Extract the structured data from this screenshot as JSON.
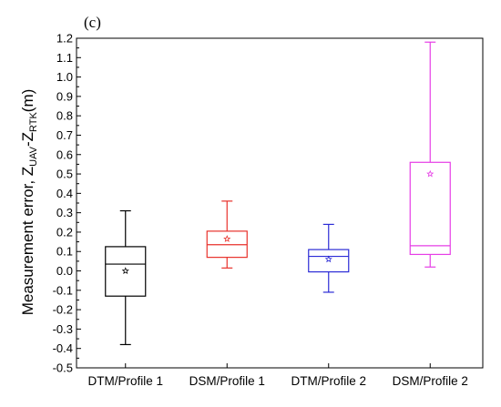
{
  "chart_data": {
    "type": "box",
    "panel_label": "(c)",
    "ylabel": {
      "prefix": "Measurement error, Z",
      "sub1": "UAV",
      "mid": "-Z",
      "sub2": "RTK",
      "suffix": "(m)"
    },
    "ylim": [
      -0.5,
      1.2
    ],
    "yticks": [
      "-0.5",
      "-0.4",
      "-0.3",
      "-0.2",
      "-0.1",
      "0.0",
      "0.1",
      "0.2",
      "0.3",
      "0.4",
      "0.5",
      "0.6",
      "0.7",
      "0.8",
      "0.9",
      "1.0",
      "1.1",
      "1.2"
    ],
    "grid": false,
    "legend": "none",
    "categories": [
      "DTM/Profile 1",
      "DSM/Profile 1",
      "DTM/Profile 2",
      "DSM/Profile 2"
    ],
    "series": [
      {
        "category": "DTM/Profile 1",
        "color": "#000000",
        "whisker_low": -0.38,
        "q1": -0.13,
        "median": 0.035,
        "q3": 0.125,
        "whisker_high": 0.31,
        "mean": 0.0
      },
      {
        "category": "DSM/Profile 1",
        "color": "#e8312b",
        "whisker_low": 0.015,
        "q1": 0.07,
        "median": 0.135,
        "q3": 0.205,
        "whisker_high": 0.36,
        "mean": 0.165
      },
      {
        "category": "DTM/Profile 2",
        "color": "#2c2cd6",
        "whisker_low": -0.11,
        "q1": -0.005,
        "median": 0.075,
        "q3": 0.11,
        "whisker_high": 0.24,
        "mean": 0.06
      },
      {
        "category": "DSM/Profile 2",
        "color": "#e63ee6",
        "whisker_low": 0.02,
        "q1": 0.085,
        "median": 0.13,
        "q3": 0.56,
        "whisker_high": 1.18,
        "mean": 0.5
      }
    ]
  }
}
